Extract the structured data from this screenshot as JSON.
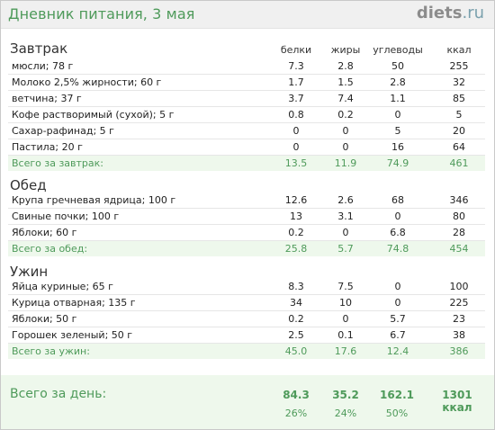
{
  "header": {
    "title": "Дневник питания, 3 мая",
    "logo_main": "diets",
    "logo_tld": ".ru"
  },
  "columns": [
    "белки",
    "жиры",
    "углеводы",
    "ккал"
  ],
  "breakfast": {
    "title": "Завтрак",
    "rows": [
      {
        "name": "мюсли; 78 г",
        "p": "7.3",
        "f": "2.8",
        "c": "50",
        "k": "255"
      },
      {
        "name": "Молоко 2,5% жирности; 60 г",
        "p": "1.7",
        "f": "1.5",
        "c": "2.8",
        "k": "32"
      },
      {
        "name": "ветчина; 37 г",
        "p": "3.7",
        "f": "7.4",
        "c": "1.1",
        "k": "85"
      },
      {
        "name": "Кофе растворимый (сухой); 5 г",
        "p": "0.8",
        "f": "0.2",
        "c": "0",
        "k": "5"
      },
      {
        "name": "Сахар-рафинад; 5 г",
        "p": "0",
        "f": "0",
        "c": "5",
        "k": "20"
      },
      {
        "name": "Пастила; 20 г",
        "p": "0",
        "f": "0",
        "c": "16",
        "k": "64"
      }
    ],
    "total": {
      "name": "Всего за завтрак:",
      "p": "13.5",
      "f": "11.9",
      "c": "74.9",
      "k": "461"
    }
  },
  "lunch": {
    "title": "Обед",
    "rows": [
      {
        "name": "Крупа гречневая ядрица; 100 г",
        "p": "12.6",
        "f": "2.6",
        "c": "68",
        "k": "346"
      },
      {
        "name": "Свиные почки; 100 г",
        "p": "13",
        "f": "3.1",
        "c": "0",
        "k": "80"
      },
      {
        "name": "Яблоки; 60 г",
        "p": "0.2",
        "f": "0",
        "c": "6.8",
        "k": "28"
      }
    ],
    "total": {
      "name": "Всего за обед:",
      "p": "25.8",
      "f": "5.7",
      "c": "74.8",
      "k": "454"
    }
  },
  "dinner": {
    "title": "Ужин",
    "rows": [
      {
        "name": "Яйца куриные; 65 г",
        "p": "8.3",
        "f": "7.5",
        "c": "0",
        "k": "100"
      },
      {
        "name": "Курица отварная; 135 г",
        "p": "34",
        "f": "10",
        "c": "0",
        "k": "225"
      },
      {
        "name": "Яблоки; 50 г",
        "p": "0.2",
        "f": "0",
        "c": "5.7",
        "k": "23"
      },
      {
        "name": "Горошек зеленый; 50 г",
        "p": "2.5",
        "f": "0.1",
        "c": "6.7",
        "k": "38"
      }
    ],
    "total": {
      "name": "Всего за ужин:",
      "p": "45.0",
      "f": "17.6",
      "c": "12.4",
      "k": "386"
    }
  },
  "day_total": {
    "label": "Всего за день:",
    "p": "84.3",
    "f": "35.2",
    "c": "162.1",
    "k": "1301 ккал",
    "p_pct": "26%",
    "f_pct": "24%",
    "c_pct": "50%"
  }
}
